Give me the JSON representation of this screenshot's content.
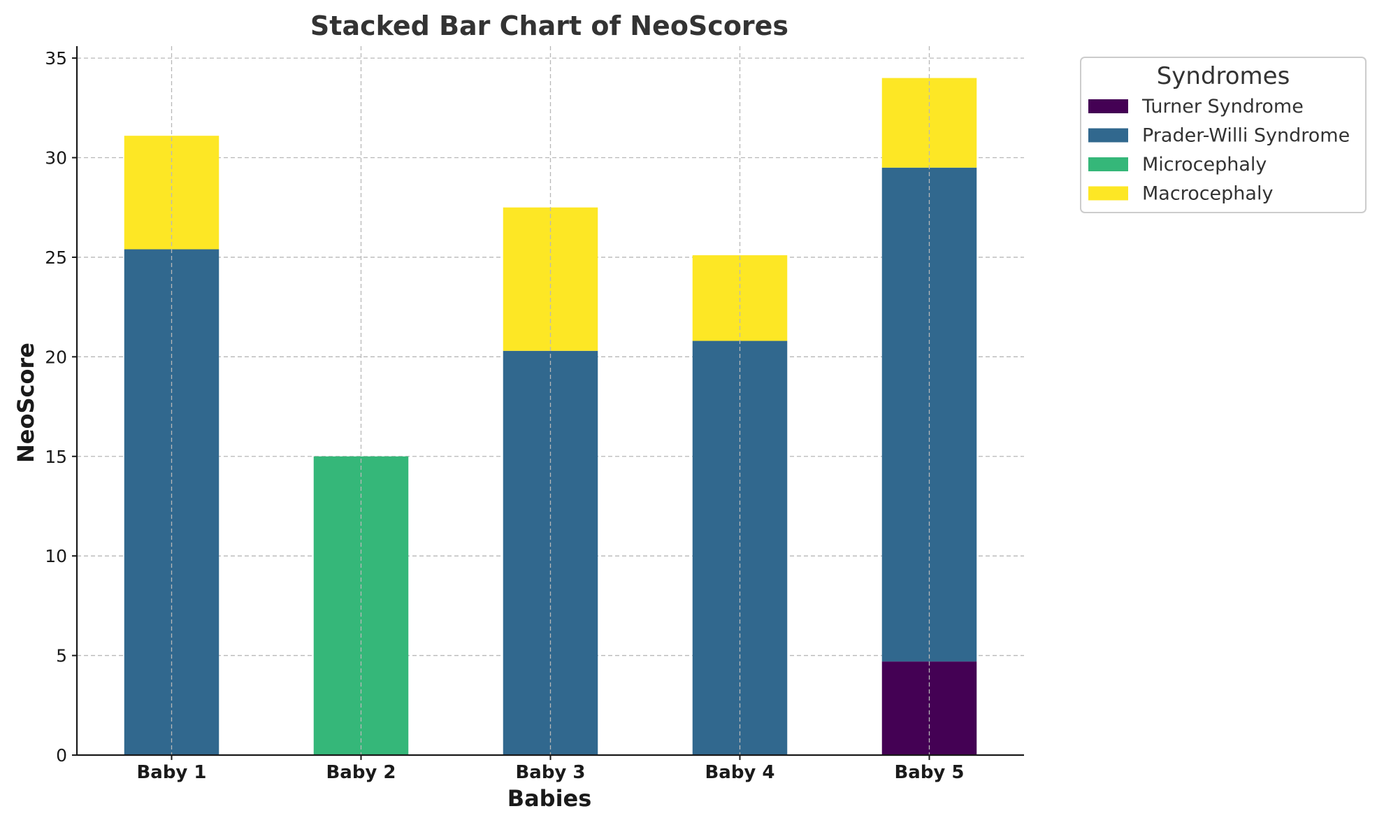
{
  "chart_data": {
    "type": "bar",
    "stacked": true,
    "title": "Stacked Bar Chart of NeoScores",
    "xlabel": "Babies",
    "ylabel": "NeoScore",
    "categories": [
      "Baby 1",
      "Baby 2",
      "Baby 3",
      "Baby 4",
      "Baby 5"
    ],
    "ylim": [
      0,
      35.6
    ],
    "yticks": [
      0,
      5,
      10,
      15,
      20,
      25,
      30,
      35
    ],
    "grid": true,
    "legend": {
      "title": "Syndromes",
      "placement": "outside-top-right"
    },
    "series": [
      {
        "name": "Turner Syndrome",
        "color": "#440154",
        "values": [
          0,
          0,
          0,
          0,
          4.7
        ]
      },
      {
        "name": "Prader-Willi Syndrome",
        "color": "#31688e",
        "values": [
          25.4,
          0,
          20.3,
          20.8,
          24.8
        ]
      },
      {
        "name": "Microcephaly",
        "color": "#35b779",
        "values": [
          0,
          15.0,
          0,
          0,
          0
        ]
      },
      {
        "name": "Macrocephaly",
        "color": "#fde725",
        "values": [
          5.7,
          0,
          7.2,
          4.3,
          4.5
        ]
      }
    ]
  }
}
